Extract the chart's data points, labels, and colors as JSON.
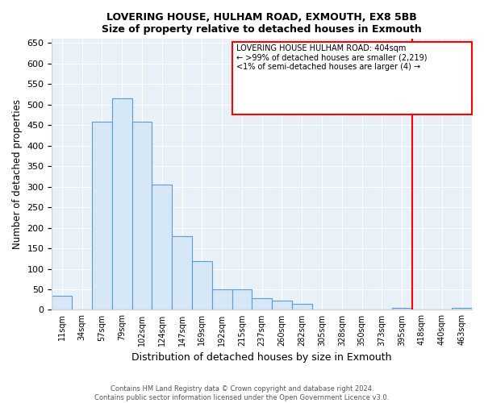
{
  "title": "LOVERING HOUSE, HULHAM ROAD, EXMOUTH, EX8 5BB",
  "subtitle": "Size of property relative to detached houses in Exmouth",
  "xlabel": "Distribution of detached houses by size in Exmouth",
  "ylabel": "Number of detached properties",
  "bar_labels": [
    "11sqm",
    "34sqm",
    "57sqm",
    "79sqm",
    "102sqm",
    "124sqm",
    "147sqm",
    "169sqm",
    "192sqm",
    "215sqm",
    "237sqm",
    "260sqm",
    "282sqm",
    "305sqm",
    "328sqm",
    "350sqm",
    "373sqm",
    "395sqm",
    "418sqm",
    "440sqm",
    "463sqm"
  ],
  "bar_heights": [
    35,
    0,
    458,
    515,
    458,
    305,
    180,
    118,
    50,
    50,
    28,
    22,
    14,
    0,
    0,
    0,
    0,
    5,
    0,
    0,
    5
  ],
  "bar_color": "#d6e8f5",
  "bar_edge_color": "#5b9bd5",
  "vline_x_index": 17,
  "vline_color": "red",
  "ylim": [
    0,
    660
  ],
  "yticks": [
    0,
    50,
    100,
    150,
    200,
    250,
    300,
    350,
    400,
    450,
    500,
    550,
    600,
    650
  ],
  "legend_title": "LOVERING HOUSE HULHAM ROAD: 404sqm",
  "legend_line1": "← >99% of detached houses are smaller (2,219)",
  "legend_line2": "<1% of semi-detached houses are larger (4) →",
  "footer_line1": "Contains HM Land Registry data © Crown copyright and database right 2024.",
  "footer_line2": "Contains public sector information licensed under the Open Government Licence v3.0.",
  "plot_bg_color": "#e8f0f8",
  "grid_color": "#ffffff",
  "fig_bg_color": "#ffffff"
}
